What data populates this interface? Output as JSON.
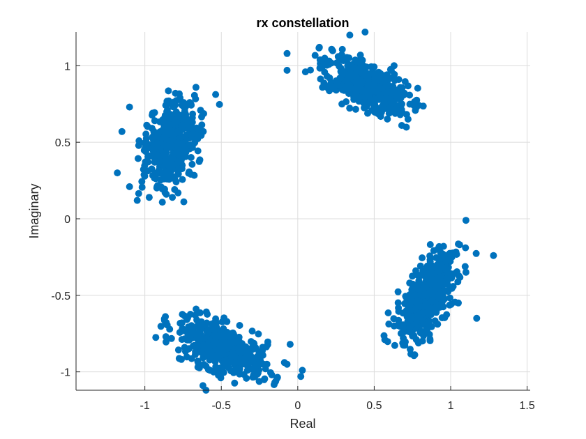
{
  "chart_data": {
    "type": "scatter",
    "title": "rx constellation",
    "xlabel": "Real",
    "ylabel": "Imaginary",
    "xlim": [
      -1.45,
      1.52
    ],
    "ylim": [
      -1.12,
      1.22
    ],
    "x_ticks": [
      -1,
      -0.5,
      0,
      0.5,
      1,
      1.5
    ],
    "x_tick_labels": [
      "-1",
      "-0.5",
      "0",
      "0.5",
      "1",
      "1.5"
    ],
    "y_ticks": [
      -1,
      -0.5,
      0,
      0.5,
      1
    ],
    "y_tick_labels": [
      "-1",
      "-0.5",
      "0",
      "0.5",
      "1"
    ],
    "grid": true,
    "box": "left-bottom",
    "marker_color": "#0072bd",
    "clusters": [
      {
        "center": [
          -0.82,
          0.5
        ],
        "spread_major": 0.15,
        "spread_minor": 0.08,
        "rotation_deg": 70,
        "count": 450,
        "outliers": [
          [
            -1.18,
            0.3
          ],
          [
            -1.1,
            0.73
          ],
          [
            -1.15,
            0.57
          ],
          [
            -1.05,
            0.12
          ],
          [
            -0.8,
            0.82
          ],
          [
            -0.77,
            0.79
          ],
          [
            -0.82,
            0.14
          ],
          [
            -1.1,
            0.21
          ]
        ]
      },
      {
        "center": [
          0.45,
          0.87
        ],
        "spread_major": 0.15,
        "spread_minor": 0.07,
        "rotation_deg": -28,
        "count": 450,
        "outliers": [
          [
            -0.07,
            1.08
          ],
          [
            -0.07,
            0.97
          ],
          [
            0.34,
            1.2
          ],
          [
            0.44,
            1.22
          ],
          [
            0.68,
            0.61
          ],
          [
            0.76,
            0.74
          ],
          [
            0.05,
            0.96
          ],
          [
            0.63,
            1.0
          ]
        ]
      },
      {
        "center": [
          -0.5,
          -0.84
        ],
        "spread_major": 0.16,
        "spread_minor": 0.07,
        "rotation_deg": -25,
        "count": 450,
        "outliers": [
          [
            0.02,
            -1.03
          ],
          [
            -0.05,
            -0.82
          ],
          [
            -0.6,
            -1.12
          ],
          [
            -0.62,
            -1.09
          ],
          [
            -0.67,
            -0.63
          ],
          [
            -0.07,
            -0.95
          ],
          [
            -0.15,
            -1.07
          ],
          [
            0.03,
            -0.99
          ]
        ]
      },
      {
        "center": [
          0.85,
          -0.5
        ],
        "spread_major": 0.15,
        "spread_minor": 0.07,
        "rotation_deg": 62,
        "count": 450,
        "outliers": [
          [
            1.28,
            -0.24
          ],
          [
            1.1,
            -0.01
          ],
          [
            1.17,
            -0.65
          ],
          [
            1.01,
            -0.23
          ],
          [
            0.69,
            -0.78
          ],
          [
            0.98,
            -0.27
          ],
          [
            1.05,
            -0.55
          ],
          [
            0.63,
            -0.7
          ]
        ]
      }
    ]
  }
}
